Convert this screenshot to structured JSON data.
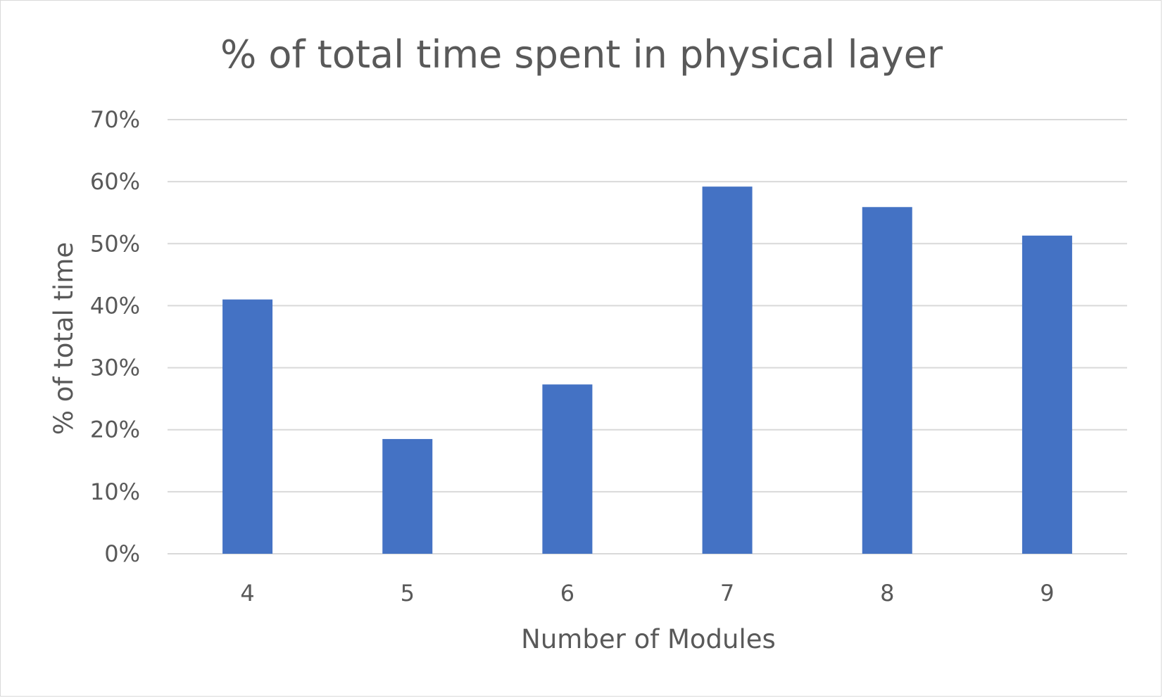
{
  "chart_data": {
    "type": "bar",
    "title": "% of total time spent in physical layer",
    "xlabel": "Number of Modules",
    "ylabel": "% of total time",
    "categories": [
      "4",
      "5",
      "6",
      "7",
      "8",
      "9"
    ],
    "values": [
      0.41,
      0.185,
      0.273,
      0.592,
      0.559,
      0.513
    ],
    "ylim": [
      0,
      0.7
    ],
    "yticks": [
      0,
      0.1,
      0.2,
      0.3,
      0.4,
      0.5,
      0.6,
      0.7
    ],
    "ytick_labels": [
      "0%",
      "10%",
      "20%",
      "30%",
      "40%",
      "50%",
      "60%",
      "70%"
    ],
    "bar_color": "#4472c4",
    "grid": true,
    "legend": "none"
  }
}
